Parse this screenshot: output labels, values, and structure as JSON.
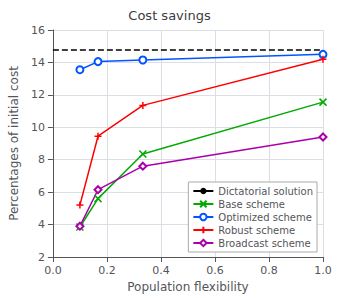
{
  "chart_data": {
    "type": "line",
    "title": "Cost savings",
    "x_label": "Population flexibility",
    "y_label": "Percentages of initial cost",
    "xlim": [
      0,
      1.0
    ],
    "ylim": [
      2,
      16
    ],
    "xticks": [
      {
        "value": 0,
        "label": "0.0"
      },
      0.2,
      0.4,
      0.6,
      0.8,
      {
        "value": 1.0,
        "label": "1.0"
      }
    ],
    "yticks": [
      2,
      4,
      6,
      8,
      10,
      12,
      14,
      16
    ],
    "grid": true,
    "legend": "lower right",
    "series": [
      {
        "name": "Dictatorial solution",
        "type": "hline",
        "color": "#000000",
        "line_style": "dashed",
        "values": [
          14.8
        ]
      },
      {
        "name": "Base scheme",
        "color": "#00aa00",
        "marker": "x",
        "x": [
          0.1,
          0.167,
          0.333,
          1.0
        ],
        "values": [
          3.85,
          5.6,
          8.35,
          11.55
        ]
      },
      {
        "name": "Optimized scheme",
        "color": "#0055ff",
        "marker": "circle",
        "x": [
          0.1,
          0.167,
          0.333,
          1.0
        ],
        "values": [
          13.55,
          14.05,
          14.15,
          14.5
        ]
      },
      {
        "name": "Robust scheme",
        "color": "#ff0000",
        "marker": "plus",
        "x": [
          0.1,
          0.167,
          0.333,
          1.0
        ],
        "values": [
          5.2,
          9.45,
          11.35,
          14.2
        ]
      },
      {
        "name": "Broadcast scheme",
        "color": "#aa00aa",
        "marker": "diamond",
        "x": [
          0.1,
          0.167,
          0.333,
          1.0
        ],
        "values": [
          3.9,
          6.15,
          7.6,
          9.4
        ]
      }
    ]
  }
}
